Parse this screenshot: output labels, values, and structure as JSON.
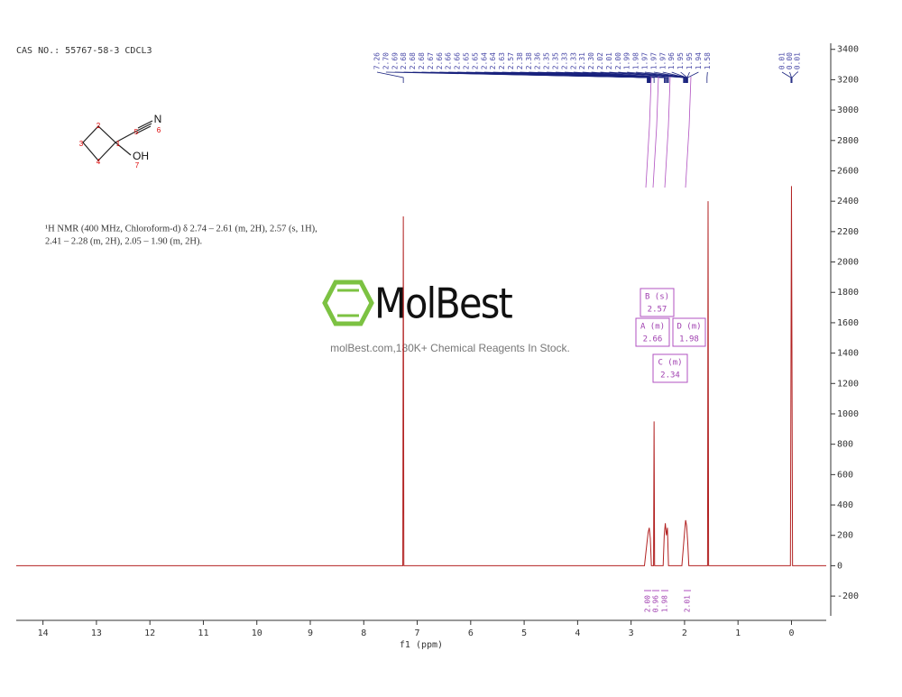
{
  "header": "CAS NO.: 55767-58-3 CDCL3",
  "molecule": {
    "atom_numbers": [
      "1",
      "2",
      "3",
      "4",
      "5",
      "6",
      "7"
    ],
    "atoms": [
      "N",
      "OH"
    ]
  },
  "nmr_text": [
    "¹H NMR (400 MHz, Chloroform-d) δ 2.74 – 2.61 (m, 2H), 2.57 (s, 1H),",
    "2.41 – 2.28 (m, 2H), 2.05 – 1.90 (m, 2H)."
  ],
  "watermark": {
    "brand": "MolBest",
    "tagline": "molBest.com,180K+ Chemical Reagents In Stock."
  },
  "chart_data": {
    "type": "line",
    "x_label": "f1 (ppm)",
    "x": [
      14.5,
      7.32,
      7.27,
      7.26,
      7.25,
      7.2,
      3.1,
      2.75,
      2.7,
      2.68,
      2.66,
      2.64,
      2.62,
      2.58,
      2.57,
      2.56,
      2.4,
      2.38,
      2.36,
      2.34,
      2.32,
      2.3,
      2.05,
      2.0,
      1.98,
      1.96,
      1.94,
      1.92,
      1.57,
      1.56,
      1.55,
      0.02,
      0.0,
      -0.02,
      -0.65
    ],
    "values": [
      0,
      0,
      0,
      2300,
      0,
      0,
      0,
      0,
      160,
      220,
      250,
      180,
      0,
      0,
      950,
      0,
      0,
      200,
      280,
      200,
      250,
      0,
      0,
      220,
      300,
      260,
      150,
      0,
      0,
      2400,
      0,
      0,
      2500,
      0,
      0
    ],
    "color": "#b22222",
    "xlim": [
      14.5,
      -0.65
    ],
    "xticks": [
      14,
      13,
      12,
      11,
      10,
      9,
      8,
      7,
      6,
      5,
      4,
      3,
      2,
      1,
      0
    ],
    "ylim": [
      -330,
      3440
    ],
    "yticks": [
      -200,
      0,
      200,
      400,
      600,
      800,
      1000,
      1200,
      1400,
      1600,
      1800,
      2000,
      2200,
      2400,
      2600,
      2800,
      3000,
      3200,
      3400
    ],
    "peak_labels": [
      "7.26",
      "2.70",
      "2.69",
      "2.68",
      "2.68",
      "2.68",
      "2.67",
      "2.66",
      "2.66",
      "2.66",
      "2.65",
      "2.65",
      "2.64",
      "2.64",
      "2.63",
      "2.57",
      "2.38",
      "2.38",
      "2.36",
      "2.35",
      "2.35",
      "2.33",
      "2.33",
      "2.31",
      "2.30",
      "2.02",
      "2.01",
      "2.00",
      "1.99",
      "1.98",
      "1.97",
      "1.97",
      "1.97",
      "1.96",
      "1.95",
      "1.95",
      "1.94",
      "1.58"
    ],
    "peak_labels_ref": [
      "0.01",
      "0.00",
      "-0.01"
    ],
    "multiplets": [
      {
        "name": "B (s)",
        "shift": "2.57"
      },
      {
        "name": "A (m)",
        "shift": "2.66"
      },
      {
        "name": "D (m)",
        "shift": "1.98"
      },
      {
        "name": "C (m)",
        "shift": "2.34"
      }
    ],
    "integrals": [
      "2.00",
      "0.96",
      "1.98",
      "2.01"
    ]
  }
}
